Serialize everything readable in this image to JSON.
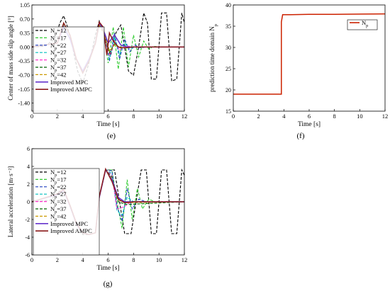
{
  "chart_data": [
    {
      "panel_label": "(e)",
      "type": "line",
      "xlabel": "Time [s]",
      "ylabel": "Center of mass side slip angle [°]",
      "xlim": [
        0,
        12
      ],
      "ylim": [
        -1.6,
        1.05
      ],
      "x_ticks": [
        0,
        2,
        4,
        6,
        8,
        10,
        12
      ],
      "y_ticks": [
        1.05,
        0.7,
        0.35,
        0.0,
        -0.35,
        -0.7,
        -1.05,
        -1.4
      ],
      "y_tick_labels": [
        "1.05",
        "0.70",
        "0.35",
        "0.00",
        "-0.35",
        "-0.70",
        "-1.05",
        "-1.40"
      ],
      "grid": false,
      "legend_position": "left",
      "series": [
        {
          "name": "Np=12",
          "color": "#000000",
          "dash": "4,2",
          "x": [
            0,
            1.0,
            1.8,
            2.2,
            2.5,
            2.8,
            3.2,
            3.6,
            4.0,
            4.4,
            4.8,
            5.0,
            5.3,
            5.6,
            5.9,
            6.2,
            6.6,
            7.0,
            7.3,
            7.6,
            8.0,
            8.4,
            8.8,
            9.1,
            9.4,
            9.8,
            10.2,
            10.6,
            11.0,
            11.4,
            11.8,
            12.0
          ],
          "values": [
            0.0,
            0.02,
            0.2,
            0.6,
            0.78,
            0.5,
            0.0,
            -0.6,
            -0.9,
            -0.5,
            0.0,
            0.3,
            0.65,
            0.4,
            0.1,
            -0.2,
            0.35,
            0.55,
            0.0,
            -0.6,
            -0.7,
            0.0,
            0.85,
            0.6,
            -0.8,
            -0.8,
            0.85,
            0.85,
            -0.85,
            -0.8,
            0.85,
            0.6
          ]
        },
        {
          "name": "Np=17",
          "color": "#33cc33",
          "dash": "4,2",
          "x": [
            0,
            2.0,
            2.5,
            3.0,
            3.5,
            4.0,
            4.5,
            5.0,
            5.3,
            5.6,
            6.0,
            6.4,
            6.8,
            7.2,
            7.6,
            8.0,
            8.4,
            8.8,
            9.2,
            9.6,
            10.0,
            12.0
          ],
          "values": [
            0.0,
            0.1,
            0.55,
            0.2,
            -0.3,
            -0.6,
            -0.3,
            0.1,
            0.55,
            0.45,
            -0.4,
            0.5,
            -0.55,
            0.5,
            -0.5,
            0.3,
            -0.25,
            0.15,
            -0.05,
            0.02,
            0.0,
            0.0
          ]
        },
        {
          "name": "Np=22",
          "color": "#1f3fbf",
          "dash": "4,2",
          "x": [
            0,
            2.0,
            2.5,
            3.0,
            3.5,
            4.0,
            4.5,
            5.0,
            5.3,
            5.7,
            6.1,
            6.5,
            6.9,
            7.3,
            7.7,
            8.1,
            8.5,
            9.0,
            12.0
          ],
          "values": [
            0.0,
            0.1,
            0.5,
            0.2,
            -0.3,
            -0.6,
            -0.3,
            0.1,
            0.55,
            0.35,
            -0.35,
            0.35,
            -0.3,
            0.2,
            -0.12,
            0.05,
            -0.02,
            0.0,
            0.0
          ]
        },
        {
          "name": "Np=27",
          "color": "#00bfbf",
          "dash": "4,2",
          "x": [
            0,
            2.0,
            2.5,
            3.0,
            3.5,
            4.0,
            4.5,
            5.0,
            5.3,
            5.7,
            6.1,
            6.5,
            6.9,
            7.3,
            7.7,
            8.2,
            12.0
          ],
          "values": [
            0.0,
            0.1,
            0.5,
            0.2,
            -0.3,
            -0.6,
            -0.3,
            0.1,
            0.55,
            0.3,
            -0.3,
            0.25,
            -0.18,
            0.1,
            -0.04,
            0.0,
            0.0
          ]
        },
        {
          "name": "Np=32",
          "color": "#ff33cc",
          "dash": "4,2",
          "x": [
            0,
            2.0,
            2.5,
            3.0,
            3.5,
            4.0,
            4.5,
            5.0,
            5.3,
            5.7,
            6.1,
            6.5,
            6.9,
            7.4,
            8.0,
            12.0
          ],
          "values": [
            0.0,
            0.1,
            0.5,
            0.2,
            -0.3,
            -0.6,
            -0.3,
            0.1,
            0.55,
            0.3,
            -0.22,
            0.15,
            -0.08,
            0.03,
            0.0,
            0.0
          ]
        },
        {
          "name": "Np=37",
          "color": "#006400",
          "dash": "4,2",
          "x": [
            0,
            2.0,
            2.5,
            3.0,
            3.5,
            4.0,
            4.5,
            5.0,
            5.3,
            5.7,
            6.1,
            6.5,
            7.0,
            7.6,
            12.0
          ],
          "values": [
            0.0,
            0.1,
            0.5,
            0.2,
            -0.3,
            -0.6,
            -0.3,
            0.1,
            0.55,
            0.3,
            -0.15,
            0.08,
            -0.03,
            0.0,
            0.0
          ]
        },
        {
          "name": "Np=42",
          "color": "#cc9900",
          "dash": "4,2",
          "x": [
            0,
            2.0,
            2.5,
            3.0,
            3.5,
            4.0,
            4.5,
            5.0,
            5.3,
            5.7,
            6.1,
            6.5,
            7.0,
            7.5,
            12.0
          ],
          "values": [
            0.0,
            0.1,
            0.5,
            0.2,
            -0.3,
            -0.6,
            -0.3,
            0.1,
            0.55,
            0.3,
            -0.1,
            0.05,
            -0.02,
            0.0,
            0.0
          ]
        },
        {
          "name": "Improved MPC",
          "color": "#6633cc",
          "dash": "",
          "x": [
            0,
            2.0,
            2.5,
            3.0,
            3.5,
            4.0,
            4.5,
            5.0,
            5.3,
            5.6,
            6.0,
            6.5,
            7.0,
            7.5,
            8.0,
            12.0
          ],
          "values": [
            0.0,
            0.1,
            0.5,
            0.2,
            -0.3,
            -0.6,
            -0.3,
            0.1,
            0.6,
            0.45,
            0.1,
            0.3,
            0.05,
            0.0,
            0.0,
            0.0
          ]
        },
        {
          "name": "Improved AMPC",
          "color": "#8b1a1a",
          "dash": "",
          "x": [
            0,
            2.0,
            2.5,
            3.0,
            3.5,
            4.0,
            4.5,
            5.0,
            5.3,
            5.6,
            5.9,
            6.1,
            6.4,
            6.8,
            7.3,
            8.0,
            12.0
          ],
          "values": [
            0.0,
            0.1,
            0.6,
            0.3,
            -0.3,
            -0.65,
            -0.35,
            0.1,
            0.62,
            0.5,
            -0.2,
            0.35,
            0.15,
            0.0,
            -0.02,
            0.0,
            0.0
          ]
        }
      ]
    },
    {
      "panel_label": "(f)",
      "type": "line",
      "xlabel": "Time [s]",
      "ylabel": "prediction time domain Np",
      "xlim": [
        0,
        12
      ],
      "ylim": [
        15,
        40
      ],
      "x_ticks": [
        0,
        2,
        4,
        6,
        8,
        10,
        12
      ],
      "y_ticks": [
        15,
        20,
        25,
        30,
        35,
        40
      ],
      "y_tick_labels": [
        "15",
        "20",
        "25",
        "30",
        "35",
        "40"
      ],
      "grid": false,
      "legend_position": "top-right",
      "series": [
        {
          "name": "Np",
          "color": "#cc2200",
          "dash": "",
          "x": [
            0,
            3.8,
            3.8,
            3.9,
            4.5,
            6.0,
            8.0,
            12.0
          ],
          "values": [
            19,
            19,
            36,
            37.7,
            37.7,
            37.8,
            37.8,
            37.9
          ]
        }
      ]
    },
    {
      "panel_label": "(g)",
      "type": "line",
      "xlabel": "Time [s]",
      "ylabel": "Lateral acceleration [m·s⁻²]",
      "xlim": [
        0,
        12
      ],
      "ylim": [
        -6,
        6
      ],
      "x_ticks": [
        0,
        2,
        4,
        6,
        8,
        10,
        12
      ],
      "y_ticks": [
        -6,
        -4,
        -2,
        0,
        2,
        4,
        6
      ],
      "y_tick_labels": [
        "-6",
        "-4",
        "-2",
        "0",
        "2",
        "4",
        "6"
      ],
      "grid": false,
      "legend_position": "left",
      "series": [
        {
          "name": "Np=12",
          "color": "#000000",
          "dash": "4,2",
          "x": [
            0,
            1.5,
            2.0,
            2.5,
            3.0,
            3.5,
            4.0,
            4.5,
            5.0,
            5.3,
            5.8,
            6.5,
            6.9,
            7.3,
            7.8,
            8.2,
            8.6,
            9.0,
            9.4,
            9.8,
            10.2,
            10.6,
            11.0,
            11.4,
            11.8,
            12.0
          ],
          "values": [
            0.0,
            0.2,
            1.0,
            1.5,
            -0.5,
            -2.5,
            -3.7,
            -3.7,
            -3.5,
            0.5,
            3.6,
            3.6,
            0.0,
            -3.6,
            -3.6,
            0.0,
            3.6,
            3.6,
            -3.6,
            -3.6,
            3.6,
            3.6,
            -3.6,
            -3.6,
            3.6,
            3.0
          ]
        },
        {
          "name": "Np=17",
          "color": "#33cc33",
          "dash": "4,2",
          "x": [
            0,
            2.0,
            2.5,
            3.0,
            3.5,
            4.0,
            4.5,
            5.0,
            5.3,
            5.8,
            6.3,
            6.7,
            7.1,
            7.5,
            7.9,
            8.3,
            8.7,
            9.2,
            9.7,
            12.0
          ],
          "values": [
            0.0,
            0.8,
            1.3,
            -0.5,
            -2.5,
            -3.5,
            -3.7,
            -3.5,
            0.5,
            3.6,
            3.6,
            0.0,
            -3.0,
            2.5,
            -2.0,
            1.5,
            -0.8,
            0.3,
            0.0,
            0.0
          ]
        },
        {
          "name": "Np=22",
          "color": "#1f3fbf",
          "dash": "4,2",
          "x": [
            0,
            2.0,
            2.5,
            3.0,
            3.5,
            4.0,
            4.5,
            5.0,
            5.3,
            5.8,
            6.3,
            6.7,
            7.1,
            7.5,
            7.9,
            8.4,
            9.0,
            12.0
          ],
          "values": [
            0.0,
            0.8,
            1.3,
            -0.5,
            -2.5,
            -3.5,
            -3.7,
            -3.5,
            0.5,
            3.6,
            3.5,
            -0.5,
            -2.2,
            1.5,
            -0.8,
            0.3,
            0.0,
            0.0
          ]
        },
        {
          "name": "Np=27",
          "color": "#00bfbf",
          "dash": "4,2",
          "x": [
            0,
            2.0,
            2.5,
            3.0,
            3.5,
            4.0,
            4.5,
            5.0,
            5.3,
            5.8,
            6.3,
            6.7,
            7.1,
            7.5,
            8.0,
            12.0
          ],
          "values": [
            0.0,
            0.8,
            1.3,
            -0.5,
            -2.5,
            -3.5,
            -3.7,
            -3.5,
            0.5,
            3.6,
            3.2,
            -1.0,
            -1.5,
            0.5,
            0.0,
            0.0
          ]
        },
        {
          "name": "Np=32",
          "color": "#ff33cc",
          "dash": "4,2",
          "x": [
            0,
            2.0,
            2.5,
            3.0,
            3.5,
            4.0,
            4.5,
            5.0,
            5.3,
            5.8,
            6.3,
            6.7,
            7.2,
            7.8,
            12.0
          ],
          "values": [
            0.0,
            0.8,
            1.3,
            -0.5,
            -2.5,
            -3.5,
            -3.7,
            -3.5,
            0.5,
            3.6,
            3.0,
            -0.8,
            -0.6,
            0.0,
            0.0
          ]
        },
        {
          "name": "Np=37",
          "color": "#006400",
          "dash": "4,2",
          "x": [
            0,
            2.0,
            2.5,
            3.0,
            3.5,
            4.0,
            4.5,
            5.0,
            5.3,
            5.8,
            6.3,
            6.8,
            7.4,
            12.0
          ],
          "values": [
            0.0,
            0.8,
            1.3,
            -0.5,
            -2.5,
            -3.5,
            -3.7,
            -3.5,
            0.5,
            3.6,
            2.8,
            0.0,
            -0.3,
            0.0
          ]
        },
        {
          "name": "Np=42",
          "color": "#cc9900",
          "dash": "4,2",
          "x": [
            0,
            2.0,
            2.5,
            3.0,
            3.5,
            4.0,
            4.5,
            5.0,
            5.3,
            5.8,
            6.3,
            6.8,
            7.4,
            12.0
          ],
          "values": [
            0.0,
            0.8,
            1.3,
            -0.5,
            -2.5,
            -3.5,
            -3.7,
            -3.5,
            0.5,
            3.6,
            2.6,
            0.2,
            -0.1,
            0.0
          ]
        },
        {
          "name": "Improved MPC",
          "color": "#6633cc",
          "dash": "",
          "x": [
            0,
            2.0,
            2.5,
            3.0,
            3.5,
            4.0,
            4.5,
            5.0,
            5.3,
            5.8,
            6.3,
            6.8,
            7.3,
            8.0,
            12.0
          ],
          "values": [
            0.0,
            0.8,
            1.3,
            -0.5,
            -2.5,
            -3.5,
            -3.7,
            -3.5,
            0.5,
            3.6,
            2.5,
            0.5,
            0.0,
            0.0,
            0.0
          ]
        },
        {
          "name": "Improved AMPC",
          "color": "#8b1a1a",
          "dash": "",
          "x": [
            0,
            2.0,
            2.5,
            3.0,
            3.5,
            4.0,
            4.5,
            5.0,
            5.3,
            5.8,
            6.3,
            6.8,
            7.3,
            8.0,
            12.0
          ],
          "values": [
            0.0,
            0.9,
            1.4,
            -0.4,
            -2.4,
            -3.5,
            -3.7,
            -3.5,
            0.6,
            3.7,
            2.3,
            0.3,
            -0.1,
            0.0,
            0.0
          ]
        }
      ]
    }
  ]
}
